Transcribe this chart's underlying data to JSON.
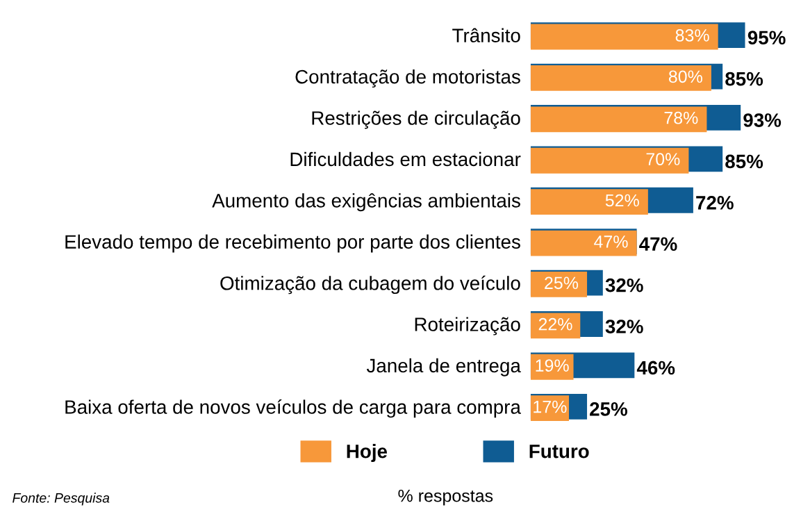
{
  "chart_data": {
    "type": "bar",
    "orientation": "horizontal",
    "xlabel": "% respostas",
    "categories": [
      "Trânsito",
      "Contratação de motoristas",
      "Restrições de circulação",
      "Dificuldades em estacionar",
      "Aumento das exigências ambientais",
      "Elevado tempo de recebimento por parte dos clientes",
      "Otimização da cubagem do veículo",
      "Roteirização",
      "Janela de entrega",
      "Baixa oferta de novos veículos de carga para compra"
    ],
    "series": [
      {
        "name": "Futuro",
        "color": "#0f5c93",
        "values": [
          95,
          85,
          93,
          85,
          72,
          47,
          32,
          32,
          46,
          25
        ],
        "value_labels": [
          "95%",
          "85%",
          "93%",
          "85%",
          "72%",
          "47%",
          "32%",
          "32%",
          "46%",
          "25%"
        ]
      },
      {
        "name": "Hoje",
        "color": "#f7983a",
        "values": [
          83,
          80,
          78,
          70,
          52,
          47,
          25,
          22,
          19,
          17
        ],
        "value_labels": [
          "83%",
          "80%",
          "78%",
          "70%",
          "52%",
          "47%",
          "25%",
          "22%",
          "19%",
          "17%"
        ]
      }
    ],
    "legend": "bottom",
    "grid": false,
    "annotations": [
      "Fonte: Pesquisa"
    ]
  }
}
